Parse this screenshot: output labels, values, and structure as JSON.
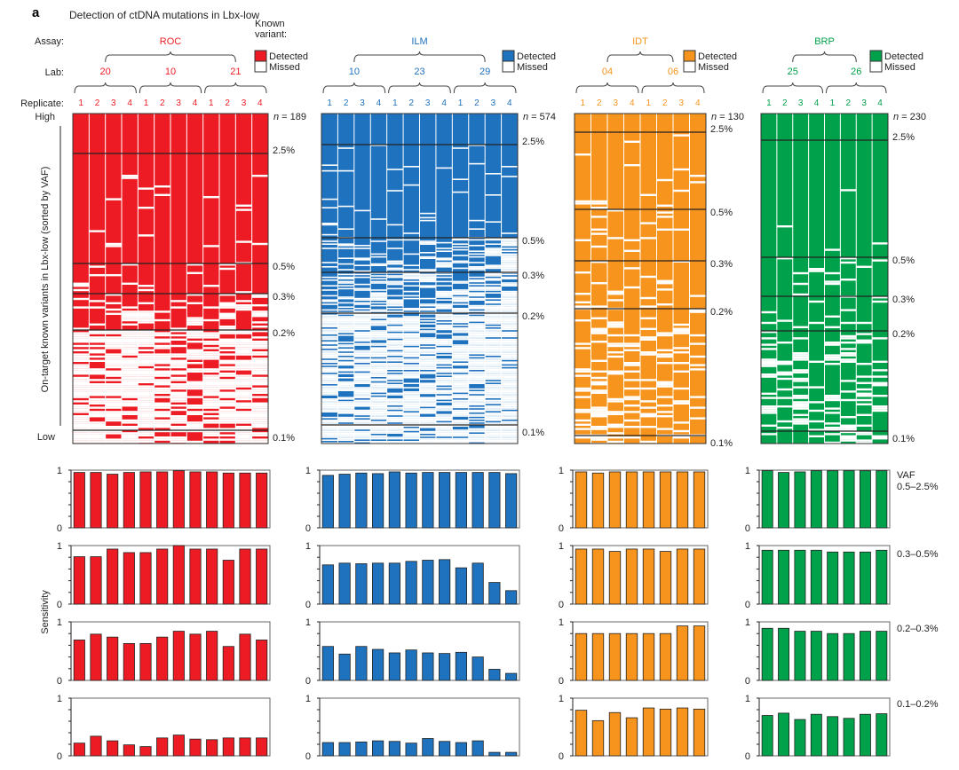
{
  "panel_letter": "a",
  "title": "Detection of ctDNA mutations in Lbx-low",
  "row_labels": {
    "assay": "Assay:",
    "lab": "Lab:",
    "replicate": "Replicate:"
  },
  "legend": {
    "heading": "Known variant:",
    "detected": "Detected",
    "missed": "Missed"
  },
  "heatmap_axis": {
    "high": "High",
    "low": "Low",
    "label": "On-target known variants in Lbx-low (sorted by VAF)"
  },
  "bar_axis": {
    "label": "Sensitivity",
    "ticks": [
      "0",
      "1"
    ],
    "ylim": [
      0,
      1
    ]
  },
  "vaf_heading": "VAF",
  "vaf_bins": [
    "0.5–2.5%",
    "0.3–0.5%",
    "0.2–0.3%",
    "0.1–0.2%"
  ],
  "thresholds": [
    "2.5%",
    "0.5%",
    "0.3%",
    "0.2%",
    "0.1%"
  ],
  "chart_data": {
    "type": "bar",
    "title": "Detection of ctDNA mutations in Lbx-low",
    "ylabel": "Sensitivity",
    "ylim": [
      0,
      1
    ],
    "assays": [
      {
        "name": "ROC",
        "color": "#ed1c24",
        "n": "n = 189",
        "labs": [
          "20",
          "10",
          "21"
        ],
        "replicates": [
          "1",
          "2",
          "3",
          "4",
          "1",
          "2",
          "3",
          "4",
          "1",
          "2",
          "3",
          "4"
        ],
        "sensitivity": [
          [
            0.96,
            0.96,
            0.93,
            0.96,
            0.97,
            0.97,
            0.99,
            0.97,
            0.97,
            0.95,
            0.95,
            0.95
          ],
          [
            0.81,
            0.81,
            0.94,
            0.88,
            0.88,
            0.94,
            1.0,
            0.94,
            0.94,
            0.75,
            0.94,
            0.94
          ],
          [
            0.69,
            0.79,
            0.74,
            0.63,
            0.63,
            0.74,
            0.84,
            0.79,
            0.84,
            0.58,
            0.79,
            0.69
          ],
          [
            0.22,
            0.34,
            0.26,
            0.19,
            0.16,
            0.31,
            0.36,
            0.29,
            0.28,
            0.31,
            0.31,
            0.31
          ]
        ]
      },
      {
        "name": "ILM",
        "color": "#1f72be",
        "n": "n = 574",
        "labs": [
          "10",
          "23",
          "29"
        ],
        "replicates": [
          "1",
          "2",
          "3",
          "4",
          "1",
          "2",
          "3",
          "4",
          "1",
          "2",
          "3",
          "4"
        ],
        "sensitivity": [
          [
            0.91,
            0.93,
            0.95,
            0.94,
            0.97,
            0.95,
            0.96,
            0.96,
            0.96,
            0.96,
            0.96,
            0.94
          ],
          [
            0.67,
            0.7,
            0.69,
            0.7,
            0.7,
            0.73,
            0.75,
            0.76,
            0.62,
            0.7,
            0.37,
            0.23
          ],
          [
            0.58,
            0.45,
            0.58,
            0.53,
            0.47,
            0.52,
            0.47,
            0.46,
            0.48,
            0.4,
            0.19,
            0.12
          ],
          [
            0.23,
            0.23,
            0.24,
            0.26,
            0.25,
            0.22,
            0.3,
            0.25,
            0.23,
            0.26,
            0.06,
            0.06
          ]
        ]
      },
      {
        "name": "IDT",
        "color": "#f7941d",
        "n": "n = 130",
        "labs": [
          "04",
          "06"
        ],
        "replicates": [
          "1",
          "2",
          "3",
          "4",
          "1",
          "2",
          "3",
          "4"
        ],
        "sensitivity": [
          [
            0.97,
            0.95,
            0.97,
            0.97,
            0.97,
            0.97,
            0.97,
            0.97
          ],
          [
            0.94,
            0.94,
            0.9,
            0.94,
            0.94,
            0.9,
            0.94,
            0.94
          ],
          [
            0.8,
            0.8,
            0.8,
            0.8,
            0.8,
            0.8,
            0.93,
            0.93
          ],
          [
            0.79,
            0.61,
            0.75,
            0.66,
            0.83,
            0.81,
            0.83,
            0.81
          ]
        ]
      },
      {
        "name": "BRP",
        "color": "#00a14b",
        "n": "n = 230",
        "labs": [
          "25",
          "26"
        ],
        "replicates": [
          "1",
          "2",
          "3",
          "4",
          "1",
          "2",
          "3",
          "4"
        ],
        "sensitivity": [
          [
            0.99,
            0.96,
            0.97,
            0.99,
            0.99,
            0.99,
            0.99,
            0.99
          ],
          [
            0.92,
            0.92,
            0.92,
            0.92,
            0.89,
            0.89,
            0.89,
            0.92
          ],
          [
            0.89,
            0.89,
            0.84,
            0.84,
            0.8,
            0.8,
            0.84,
            0.84
          ],
          [
            0.7,
            0.74,
            0.63,
            0.72,
            0.68,
            0.65,
            0.72,
            0.73
          ]
        ]
      }
    ]
  }
}
